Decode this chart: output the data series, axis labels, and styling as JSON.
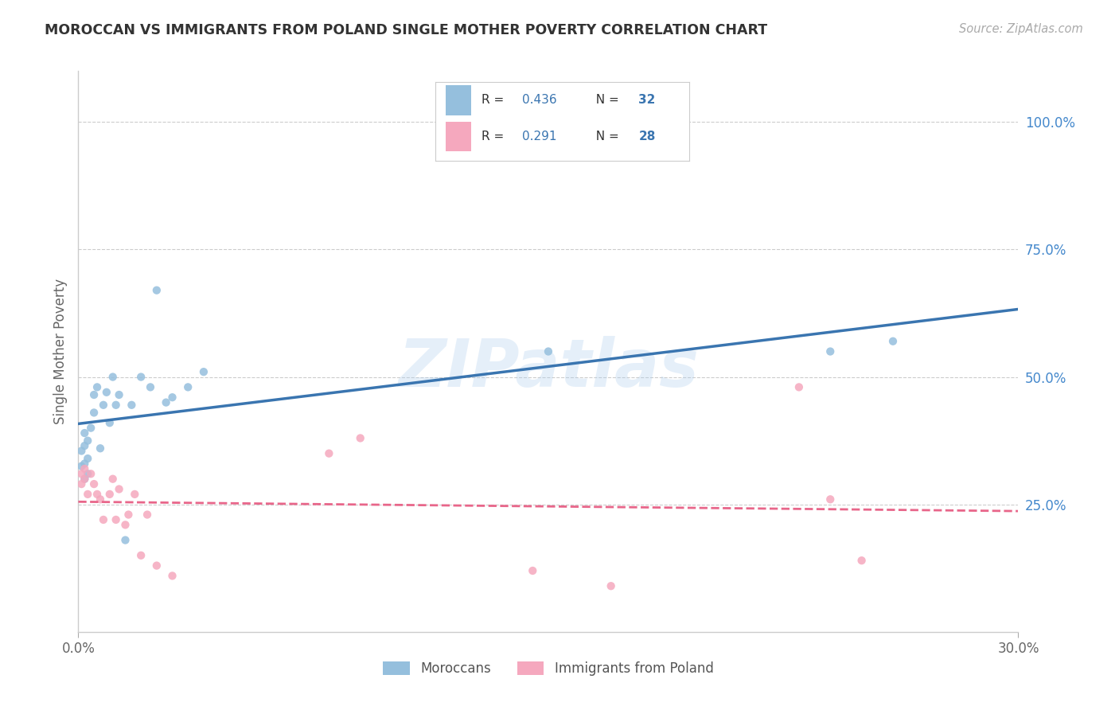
{
  "title": "MOROCCAN VS IMMIGRANTS FROM POLAND SINGLE MOTHER POVERTY CORRELATION CHART",
  "source": "Source: ZipAtlas.com",
  "ylabel": "Single Mother Poverty",
  "ytick_labels": [
    "25.0%",
    "50.0%",
    "75.0%",
    "100.0%"
  ],
  "ytick_values": [
    0.25,
    0.5,
    0.75,
    1.0
  ],
  "xrange": [
    0.0,
    0.3
  ],
  "yrange": [
    0.0,
    1.1
  ],
  "watermark": "ZIPatlas",
  "legend_label1": "Moroccans",
  "legend_label2": "Immigrants from Poland",
  "r1": "0.436",
  "n1": "32",
  "r2": "0.291",
  "n2": "28",
  "blue_scatter_color": "#95bfdd",
  "pink_scatter_color": "#f5a8be",
  "blue_line_color": "#3a75b0",
  "pink_line_color": "#e8668a",
  "right_axis_color": "#4488cc",
  "moroccan_x": [
    0.001,
    0.001,
    0.002,
    0.002,
    0.002,
    0.002,
    0.003,
    0.003,
    0.003,
    0.004,
    0.005,
    0.005,
    0.006,
    0.007,
    0.008,
    0.009,
    0.01,
    0.011,
    0.012,
    0.013,
    0.015,
    0.017,
    0.02,
    0.023,
    0.025,
    0.028,
    0.03,
    0.035,
    0.04,
    0.15,
    0.24,
    0.26
  ],
  "moroccan_y": [
    0.325,
    0.355,
    0.3,
    0.33,
    0.365,
    0.39,
    0.31,
    0.34,
    0.375,
    0.4,
    0.43,
    0.465,
    0.48,
    0.36,
    0.445,
    0.47,
    0.41,
    0.5,
    0.445,
    0.465,
    0.18,
    0.445,
    0.5,
    0.48,
    0.67,
    0.45,
    0.46,
    0.48,
    0.51,
    0.55,
    0.55,
    0.57
  ],
  "poland_x": [
    0.001,
    0.001,
    0.002,
    0.002,
    0.003,
    0.004,
    0.005,
    0.006,
    0.007,
    0.008,
    0.01,
    0.011,
    0.012,
    0.013,
    0.015,
    0.016,
    0.018,
    0.02,
    0.022,
    0.025,
    0.03,
    0.08,
    0.09,
    0.145,
    0.17,
    0.23,
    0.24,
    0.25
  ],
  "poland_y": [
    0.29,
    0.31,
    0.3,
    0.32,
    0.27,
    0.31,
    0.29,
    0.27,
    0.26,
    0.22,
    0.27,
    0.3,
    0.22,
    0.28,
    0.21,
    0.23,
    0.27,
    0.15,
    0.23,
    0.13,
    0.11,
    0.35,
    0.38,
    0.12,
    0.09,
    0.48,
    0.26,
    0.14
  ]
}
